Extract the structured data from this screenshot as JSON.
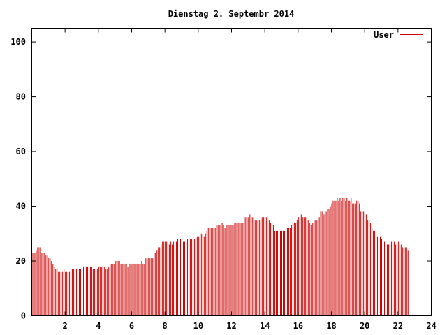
{
  "chart_data": {
    "type": "bar",
    "title": "Dienstag 2. Septembr 2014",
    "xlabel": "",
    "ylabel": "",
    "xlim": [
      0,
      24
    ],
    "ylim": [
      0,
      105
    ],
    "x_ticks": [
      2,
      4,
      6,
      8,
      10,
      12,
      14,
      16,
      18,
      20,
      22,
      24
    ],
    "y_ticks": [
      0,
      20,
      40,
      60,
      80,
      100
    ],
    "grid": false,
    "legend": "top-right",
    "bar_color": "#cc0000",
    "series": [
      {
        "name": "User",
        "interval_minutes": 5,
        "values": [
          23,
          23,
          23,
          24,
          25,
          25,
          25,
          23,
          23,
          23,
          22,
          22,
          21,
          21,
          20,
          19,
          18,
          17,
          17,
          16,
          16,
          16,
          16,
          17,
          16,
          16,
          16,
          16,
          17,
          17,
          17,
          17,
          17,
          17,
          17,
          17,
          17,
          18,
          18,
          18,
          18,
          18,
          18,
          18,
          17,
          17,
          17,
          17,
          18,
          18,
          18,
          18,
          18,
          17,
          17,
          18,
          18,
          19,
          19,
          19,
          20,
          20,
          20,
          20,
          19,
          19,
          19,
          19,
          19,
          18,
          19,
          19,
          19,
          19,
          19,
          19,
          19,
          19,
          19,
          20,
          19,
          19,
          21,
          21,
          21,
          21,
          21,
          21,
          23,
          23,
          24,
          25,
          25,
          26,
          27,
          27,
          27,
          27,
          26,
          26,
          27,
          26,
          27,
          27,
          27,
          28,
          28,
          28,
          28,
          27,
          27,
          28,
          28,
          28,
          28,
          28,
          28,
          28,
          28,
          29,
          29,
          29,
          30,
          30,
          29,
          30,
          31,
          32,
          32,
          32,
          32,
          32,
          32,
          33,
          33,
          33,
          33,
          34,
          33,
          32,
          33,
          33,
          33,
          33,
          33,
          33,
          34,
          34,
          34,
          34,
          34,
          34,
          34,
          36,
          36,
          36,
          36,
          37,
          36,
          36,
          35,
          35,
          35,
          35,
          35,
          36,
          36,
          36,
          35,
          36,
          35,
          35,
          34,
          34,
          33,
          31,
          31,
          31,
          31,
          31,
          31,
          31,
          31,
          32,
          32,
          32,
          32,
          33,
          34,
          34,
          34,
          35,
          36,
          36,
          37,
          36,
          36,
          36,
          36,
          35,
          34,
          33,
          34,
          34,
          35,
          35,
          35,
          36,
          38,
          38,
          37,
          37,
          38,
          39,
          39,
          40,
          41,
          42,
          42,
          42,
          43,
          42,
          43,
          42,
          43,
          43,
          42,
          43,
          42,
          42,
          43,
          41,
          41,
          41,
          42,
          42,
          41,
          38,
          38,
          38,
          37,
          37,
          35,
          35,
          34,
          32,
          31,
          31,
          30,
          29,
          29,
          29,
          28,
          27,
          27,
          27,
          26,
          26,
          27,
          27,
          27,
          27,
          26,
          26,
          27,
          26,
          26,
          25,
          25,
          25,
          25,
          24
        ]
      }
    ]
  }
}
